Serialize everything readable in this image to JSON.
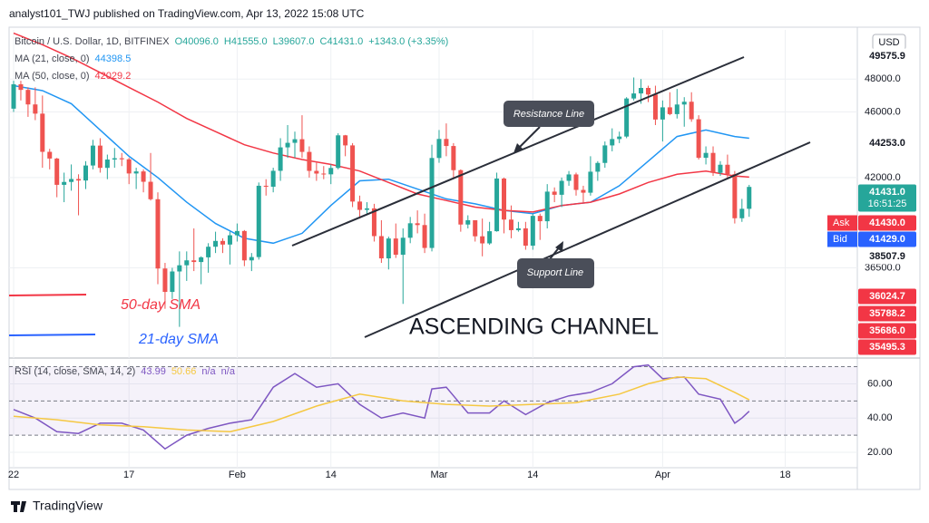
{
  "chart_data": {
    "type": "candlestick",
    "header": "analyst101_TWJ published on TradingView.com, Apr 13, 2022 15:08 UTC",
    "title": "Bitcoin / U.S. Dollar, 1D, BITFINEX",
    "ohlc_legend": [
      "O40096.0",
      "H41555.0",
      "L39607.0",
      "C41431.0",
      "+1343.0 (+3.35%)"
    ],
    "currency": "USD",
    "watermark": "TradingView",
    "grid": true,
    "up_color": "#26a69a",
    "down_color": "#ef5350",
    "xlim": [
      -0.63,
      117
    ],
    "xticks": [
      {
        "value": 0,
        "label": "22"
      },
      {
        "value": 16,
        "label": "17"
      },
      {
        "value": 31,
        "label": "Feb"
      },
      {
        "value": 44,
        "label": "14"
      },
      {
        "value": 59,
        "label": "Mar"
      },
      {
        "value": 72,
        "label": "14"
      },
      {
        "value": 90,
        "label": "Apr"
      },
      {
        "value": 107,
        "label": "18"
      }
    ],
    "ylim": [
      31000,
      51000
    ],
    "yticks": [
      {
        "value": 48000,
        "label": "48000.0"
      },
      {
        "value": 46000,
        "label": "46000.0"
      },
      {
        "value": 42000,
        "label": "42000.0"
      },
      {
        "value": 36500,
        "label": "36500.0"
      }
    ],
    "ohlc": [
      [
        46200,
        47900,
        46000,
        47686
      ],
      [
        47686,
        47900,
        46700,
        47345
      ],
      [
        47345,
        47500,
        45700,
        46458
      ],
      [
        46458,
        47500,
        45500,
        45897
      ],
      [
        45897,
        47000,
        42600,
        43569
      ],
      [
        43569,
        43750,
        42500,
        43160
      ],
      [
        43160,
        43200,
        40800,
        41557
      ],
      [
        41557,
        42300,
        40500,
        41733
      ],
      [
        41733,
        42800,
        41200,
        41911
      ],
      [
        41911,
        42200,
        39700,
        41821
      ],
      [
        41821,
        43000,
        41300,
        42735
      ],
      [
        42735,
        44300,
        42500,
        43949
      ],
      [
        43949,
        44400,
        42300,
        42591
      ],
      [
        42591,
        43400,
        41900,
        43099
      ],
      [
        43099,
        43800,
        42600,
        43177
      ],
      [
        43177,
        43500,
        42700,
        43113
      ],
      [
        43113,
        43200,
        41600,
        42250
      ],
      [
        42250,
        42600,
        41300,
        42375
      ],
      [
        42375,
        42500,
        41100,
        41744
      ],
      [
        41744,
        43500,
        40600,
        40680
      ],
      [
        40680,
        41100,
        35500,
        36457
      ],
      [
        36457,
        36800,
        34000,
        35030
      ],
      [
        35030,
        36500,
        34600,
        36276
      ],
      [
        36276,
        37500,
        32900,
        36654
      ],
      [
        36654,
        37500,
        35700,
        36954
      ],
      [
        36954,
        38900,
        36300,
        36852
      ],
      [
        36852,
        37200,
        35500,
        37138
      ],
      [
        37138,
        38000,
        36200,
        37784
      ],
      [
        37784,
        38700,
        37400,
        38138
      ],
      [
        38138,
        38300,
        37400,
        37917
      ],
      [
        37917,
        38700,
        36700,
        38483
      ],
      [
        38483,
        39200,
        38100,
        38743
      ],
      [
        38743,
        38800,
        36600,
        36952
      ],
      [
        36952,
        37400,
        36300,
        37154
      ],
      [
        37154,
        41700,
        37000,
        41500
      ],
      [
        41500,
        41900,
        40900,
        41441
      ],
      [
        41441,
        42600,
        41100,
        42412
      ],
      [
        42412,
        44400,
        41800,
        43840
      ],
      [
        43840,
        45200,
        43200,
        44118
      ],
      [
        44118,
        44800,
        43200,
        44338
      ],
      [
        44338,
        45800,
        43200,
        43565
      ],
      [
        43565,
        43900,
        42000,
        42407
      ],
      [
        42407,
        42900,
        41800,
        42244
      ],
      [
        42244,
        42700,
        41900,
        42197
      ],
      [
        42197,
        42800,
        41600,
        42586
      ],
      [
        42586,
        44700,
        42500,
        44575
      ],
      [
        44575,
        44600,
        43300,
        43961
      ],
      [
        43961,
        44100,
        40200,
        40538
      ],
      [
        40538,
        40900,
        39500,
        40030
      ],
      [
        40030,
        40500,
        39700,
        40122
      ],
      [
        40122,
        40400,
        38100,
        38431
      ],
      [
        38431,
        39400,
        36800,
        37075
      ],
      [
        37075,
        38400,
        36400,
        38286
      ],
      [
        38286,
        39200,
        37100,
        37296
      ],
      [
        37296,
        38900,
        34300,
        38332
      ],
      [
        38332,
        39600,
        38000,
        39214
      ],
      [
        39214,
        40000,
        38600,
        39105
      ],
      [
        39105,
        39800,
        37400,
        37710
      ],
      [
        37710,
        44000,
        37500,
        43193
      ],
      [
        43193,
        44900,
        42900,
        44354
      ],
      [
        44354,
        45300,
        43300,
        43924
      ],
      [
        43924,
        44100,
        41900,
        42451
      ],
      [
        42451,
        42500,
        38700,
        39137
      ],
      [
        39137,
        39700,
        38900,
        39400
      ],
      [
        39400,
        39400,
        38100,
        38420
      ],
      [
        38420,
        39500,
        37200,
        37988
      ],
      [
        37988,
        39300,
        37900,
        38730
      ],
      [
        38730,
        42300,
        38700,
        41941
      ],
      [
        41941,
        42000,
        38600,
        39439
      ],
      [
        39439,
        40300,
        38300,
        38794
      ],
      [
        38794,
        39300,
        38700,
        38904
      ],
      [
        38904,
        39300,
        37600,
        37849
      ],
      [
        37849,
        39800,
        37600,
        39666
      ],
      [
        39666,
        39800,
        38200,
        39338
      ],
      [
        39338,
        41600,
        38900,
        41143
      ],
      [
        41143,
        41400,
        40500,
        40951
      ],
      [
        40951,
        42000,
        40200,
        41801
      ],
      [
        41801,
        42400,
        41500,
        42191
      ],
      [
        42191,
        42300,
        40900,
        41247
      ],
      [
        41247,
        41500,
        40500,
        41077
      ],
      [
        41077,
        43300,
        40900,
        42358
      ],
      [
        42358,
        43000,
        41800,
        42892
      ],
      [
        42892,
        44200,
        42600,
        43960
      ],
      [
        43960,
        45000,
        43600,
        44348
      ],
      [
        44348,
        44800,
        44100,
        44500
      ],
      [
        44500,
        46900,
        44400,
        46820
      ],
      [
        46820,
        48100,
        46700,
        47128
      ],
      [
        47128,
        48000,
        46500,
        47465
      ],
      [
        47465,
        47600,
        46600,
        47062
      ],
      [
        47062,
        47600,
        45200,
        45538
      ],
      [
        45538,
        46700,
        44200,
        46281
      ],
      [
        46281,
        47200,
        45800,
        45868
      ],
      [
        45868,
        47400,
        45600,
        46453
      ],
      [
        46453,
        46900,
        45100,
        46622
      ],
      [
        46622,
        47200,
        45400,
        45555
      ],
      [
        45555,
        45800,
        43100,
        43206
      ],
      [
        43206,
        43900,
        42800,
        43503
      ],
      [
        43503,
        43900,
        42100,
        42287
      ],
      [
        42287,
        43000,
        42100,
        42782
      ],
      [
        42782,
        43400,
        41900,
        42207
      ],
      [
        42207,
        42400,
        39200,
        39521
      ],
      [
        39521,
        40700,
        39300,
        40096
      ],
      [
        40096,
        41555,
        39607,
        41431
      ]
    ],
    "series": [
      {
        "name": "MA (21, close, 0)",
        "value_label": "44398.5",
        "color": "#2196f3",
        "x": [
          0,
          4,
          8,
          12,
          16,
          20,
          24,
          28,
          32,
          36,
          40,
          44,
          48,
          52,
          56,
          60,
          64,
          68,
          72,
          76,
          80,
          84,
          88,
          92,
          96,
          100,
          102
        ],
        "values": [
          47600,
          47300,
          46500,
          44900,
          43300,
          42000,
          40500,
          39200,
          38300,
          38000,
          38600,
          40300,
          41800,
          41900,
          41300,
          40700,
          40400,
          40000,
          39800,
          40300,
          40500,
          41500,
          43000,
          44500,
          44900,
          44500,
          44398.5
        ]
      },
      {
        "name": "MA (50, close, 0)",
        "value_label": "42029.2",
        "color": "#f23645",
        "x": [
          0,
          4,
          8,
          12,
          16,
          20,
          24,
          28,
          32,
          36,
          40,
          44,
          48,
          52,
          56,
          60,
          64,
          68,
          72,
          76,
          80,
          84,
          88,
          92,
          96,
          100,
          102
        ],
        "values": [
          50800,
          50100,
          49300,
          48400,
          47500,
          46600,
          45600,
          44800,
          44000,
          43500,
          43100,
          42800,
          42400,
          41700,
          41000,
          40600,
          40200,
          40000,
          39900,
          40300,
          40500,
          41000,
          41700,
          42200,
          42400,
          42100,
          42029.2
        ]
      }
    ],
    "price_labels": [
      {
        "label": "49575.9",
        "color": "#ffffff"
      },
      {
        "label": "44253.0",
        "color": "#ffffff"
      },
      {
        "label": "41431.0",
        "sub": "16:51:25",
        "color": "#26a69a"
      },
      {
        "name": "Ask",
        "label": "41430.0",
        "color": "#f23645"
      },
      {
        "name": "Bid",
        "label": "41429.0",
        "color": "#2962ff"
      },
      {
        "label": "38507.9",
        "color": "#ffffff"
      },
      {
        "label": "36024.7",
        "color": "#f23645"
      },
      {
        "label": "35788.2",
        "color": "#f23645"
      },
      {
        "label": "35686.0",
        "color": "#f23645"
      },
      {
        "label": "35495.3",
        "color": "#f23645"
      }
    ],
    "annotations": {
      "resistance": "Resistance Line",
      "support": "Support Line",
      "channel": "ASCENDING CHANNEL",
      "sma50": "50-day SMA",
      "sma21": "21-day SMA"
    },
    "rsi": {
      "name": "RSI (14, close, SMA, 14, 2)",
      "legend_values": [
        "43.99",
        "50.66",
        "n/a",
        "n/a"
      ],
      "ylim": [
        11,
        74
      ],
      "yticks": [
        {
          "value": 60,
          "label": "60.00"
        },
        {
          "value": 40,
          "label": "40.00"
        },
        {
          "value": 20,
          "label": "20.00"
        }
      ],
      "bands": [
        30,
        50,
        70
      ],
      "series": [
        {
          "color": "#7e57c2",
          "x": [
            0,
            3,
            6,
            9,
            12,
            15,
            18,
            21,
            24,
            27,
            30,
            33,
            36,
            39,
            42,
            45,
            48,
            51,
            54,
            57,
            58,
            60,
            63,
            66,
            68,
            71,
            74,
            77,
            80,
            83,
            86,
            88,
            90,
            93,
            95,
            98,
            100,
            101,
            102
          ],
          "values": [
            45,
            40,
            32,
            31,
            37,
            37,
            33,
            22,
            30,
            34,
            37,
            39,
            58,
            66,
            58,
            60,
            48,
            40,
            43,
            40,
            57,
            58,
            43,
            43,
            50,
            42,
            49,
            53,
            55,
            60,
            70,
            71,
            63,
            64,
            54,
            51,
            37,
            40,
            43.99
          ]
        },
        {
          "color": "#f5c842",
          "x": [
            0,
            6,
            12,
            18,
            24,
            30,
            36,
            42,
            48,
            54,
            60,
            66,
            72,
            78,
            84,
            88,
            92,
            96,
            100,
            102
          ],
          "values": [
            41,
            39,
            36,
            35,
            33,
            32,
            38,
            47,
            54,
            50,
            48,
            47,
            48,
            49,
            54,
            60,
            64,
            63,
            55,
            50.66
          ]
        }
      ]
    }
  }
}
